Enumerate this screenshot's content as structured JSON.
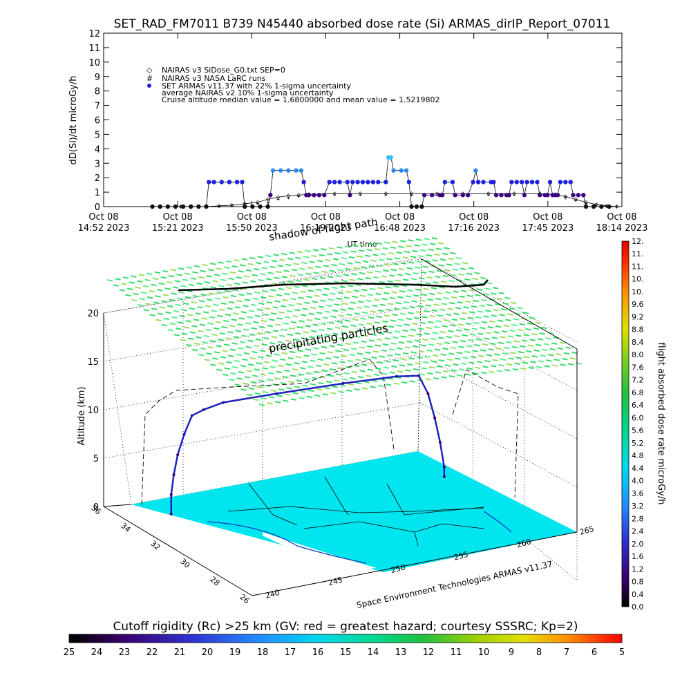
{
  "chart_data": [
    {
      "type": "line",
      "title": "SET_RAD_FM7011   B739 N45440 absorbed dose rate (Si) ARMAS_dirIP_Report_07011",
      "ylabel": "dD(Si)/dt microGy/h",
      "ylim": [
        0,
        12
      ],
      "yticks": [
        "0",
        "1",
        "2",
        "3",
        "4",
        "5",
        "6",
        "7",
        "8",
        "9",
        "10",
        "11",
        "12"
      ],
      "xlabel": "UT time",
      "xticks": [
        {
          "d": "Oct 08",
          "t": "14:52 2023"
        },
        {
          "d": "Oct 08",
          "t": "15:21 2023"
        },
        {
          "d": "Oct 08",
          "t": "15:50 2023"
        },
        {
          "d": "Oct 08",
          "t": "16:19 2023"
        },
        {
          "d": "Oct 08",
          "t": "16:48 2023"
        },
        {
          "d": "Oct 08",
          "t": "17:16 2023"
        },
        {
          "d": "Oct 08",
          "t": "17:45 2023"
        },
        {
          "d": "Oct 08",
          "t": "18:14 2023"
        }
      ],
      "xlim_minutes": [
        0,
        202
      ],
      "legend": [
        "NAIRAS v3 SiDose_G0.txt SEP=0",
        "NAIRAS v3 NASA LaRC runs",
        "SET ARMAS v11.37 with 22% 1-sigma uncertainty",
        "average NAIRAS v2 10% 1-sigma uncertainty",
        "Cruise altitude median value = 1.6800000 and mean value = 1.5219802"
      ],
      "series": [
        {
          "name": "SET ARMAS v11.37 with 22% 1-sigma uncertainty",
          "points": [
            [
              19,
              0
            ],
            [
              22,
              0
            ],
            [
              25,
              0
            ],
            [
              28,
              0
            ],
            [
              31,
              0
            ],
            [
              34,
              0
            ],
            [
              37,
              0
            ],
            [
              40,
              0
            ],
            [
              41,
              1.7
            ],
            [
              43,
              1.7
            ],
            [
              46,
              1.7
            ],
            [
              49,
              1.7
            ],
            [
              52,
              1.7
            ],
            [
              54,
              1.7
            ],
            [
              55,
              0
            ],
            [
              58,
              0
            ],
            [
              61,
              0
            ],
            [
              64,
              0
            ],
            [
              65,
              0.8
            ],
            [
              66,
              2.5
            ],
            [
              69,
              2.5
            ],
            [
              72,
              2.5
            ],
            [
              75,
              2.5
            ],
            [
              77,
              2.5
            ],
            [
              78,
              1.7
            ],
            [
              79,
              0.8
            ],
            [
              80,
              0.8
            ],
            [
              82,
              0.8
            ],
            [
              84,
              0.8
            ],
            [
              86,
              0.8
            ],
            [
              88,
              1.7
            ],
            [
              90,
              1.7
            ],
            [
              92,
              1.7
            ],
            [
              95,
              1.7
            ],
            [
              96,
              0.8
            ],
            [
              97,
              1.7
            ],
            [
              99,
              1.7
            ],
            [
              101,
              1.7
            ],
            [
              103,
              1.7
            ],
            [
              105,
              1.7
            ],
            [
              107,
              1.7
            ],
            [
              110,
              1.7
            ],
            [
              111,
              3.4
            ],
            [
              112,
              3.4
            ],
            [
              113,
              2.5
            ],
            [
              116,
              2.5
            ],
            [
              118,
              2.5
            ],
            [
              119,
              1.7
            ],
            [
              120,
              0
            ],
            [
              122,
              0
            ],
            [
              124,
              0
            ],
            [
              125,
              0.8
            ],
            [
              128,
              0.8
            ],
            [
              131,
              0.8
            ],
            [
              132,
              0.8
            ],
            [
              133,
              1.7
            ],
            [
              136,
              1.7
            ],
            [
              137,
              0.8
            ],
            [
              140,
              0.8
            ],
            [
              142,
              0.8
            ],
            [
              144,
              1.7
            ],
            [
              145,
              2.5
            ],
            [
              146,
              1.7
            ],
            [
              148,
              1.7
            ],
            [
              151,
              1.7
            ],
            [
              152,
              1.7
            ],
            [
              153,
              0.8
            ],
            [
              155,
              0.8
            ],
            [
              157,
              0.8
            ],
            [
              158,
              0.8
            ],
            [
              159,
              1.7
            ],
            [
              161,
              1.7
            ],
            [
              163,
              1.7
            ],
            [
              164,
              0.8
            ],
            [
              165,
              1.7
            ],
            [
              167,
              1.7
            ],
            [
              169,
              1.7
            ],
            [
              170,
              0.8
            ],
            [
              172,
              0.8
            ],
            [
              173,
              0.8
            ],
            [
              174,
              1.7
            ],
            [
              175,
              0.8
            ],
            [
              176,
              0.8
            ],
            [
              177,
              0.8
            ],
            [
              178,
              1.7
            ],
            [
              180,
              1.7
            ],
            [
              182,
              1.7
            ],
            [
              183,
              0.8
            ],
            [
              185,
              0.8
            ],
            [
              187,
              0.8
            ],
            [
              188,
              0
            ],
            [
              191,
              0
            ],
            [
              194,
              0
            ],
            [
              197,
              0
            ]
          ],
          "color": "#2020e0"
        },
        {
          "name": "NAIRAS v3 SiDose_G0.txt SEP=0",
          "points": [
            [
              19,
              0
            ],
            [
              30,
              0
            ],
            [
              40,
              0
            ],
            [
              45,
              0.05
            ],
            [
              50,
              0.1
            ],
            [
              55,
              0.2
            ],
            [
              60,
              0.3
            ],
            [
              64,
              0.5
            ],
            [
              68,
              0.65
            ],
            [
              72,
              0.75
            ],
            [
              76,
              0.8
            ],
            [
              80,
              0.85
            ],
            [
              90,
              0.9
            ],
            [
              100,
              0.9
            ],
            [
              110,
              0.9
            ],
            [
              120,
              0.9
            ],
            [
              130,
              0.9
            ],
            [
              140,
              0.9
            ],
            [
              150,
              0.9
            ],
            [
              160,
              0.9
            ],
            [
              170,
              0.9
            ],
            [
              176,
              0.85
            ],
            [
              180,
              0.7
            ],
            [
              184,
              0.5
            ],
            [
              188,
              0.3
            ],
            [
              192,
              0.15
            ],
            [
              196,
              0.05
            ],
            [
              200,
              0
            ]
          ],
          "color": "#000000"
        },
        {
          "name": "NAIRAS v3 NASA LaRC runs",
          "points": [
            [
              19,
              0
            ],
            [
              30,
              0
            ],
            [
              40,
              0
            ],
            [
              45,
              0
            ],
            [
              50,
              0.05
            ],
            [
              55,
              0.1
            ],
            [
              60,
              0.2
            ],
            [
              64,
              0.3
            ],
            [
              68,
              0.5
            ],
            [
              72,
              0.6
            ],
            [
              76,
              0.7
            ],
            [
              80,
              0.75
            ],
            [
              90,
              0.8
            ],
            [
              100,
              0.8
            ],
            [
              110,
              0.8
            ],
            [
              120,
              0.8
            ],
            [
              130,
              0.8
            ],
            [
              140,
              0.8
            ],
            [
              150,
              0.8
            ],
            [
              160,
              0.8
            ],
            [
              170,
              0.8
            ],
            [
              176,
              0.75
            ],
            [
              180,
              0.6
            ],
            [
              184,
              0.4
            ],
            [
              188,
              0.2
            ],
            [
              192,
              0.1
            ],
            [
              196,
              0.02
            ],
            [
              200,
              0
            ]
          ],
          "color": "#000000"
        }
      ]
    },
    {
      "type": "scatter",
      "title": "",
      "zlabel": "Altitude (km)",
      "zticks": [
        "0",
        "5",
        "10",
        "15",
        "20"
      ],
      "lat_ticks": [
        "36",
        "34",
        "32",
        "30",
        "28",
        "26"
      ],
      "lon_ticks": [
        "240",
        "245",
        "250",
        "255",
        "260",
        "265"
      ],
      "lon_tick_labels_shown": [
        "240",
        "245",
        "250",
        "255",
        "260",
        "265"
      ],
      "annotations": [
        "shadow of flight path",
        "precipitating particles",
        "Space Environment Technologies ARMAS v11.37"
      ],
      "flight_track": [
        [
          242,
          33.9,
          0
        ],
        [
          242,
          33.9,
          2
        ],
        [
          242.2,
          33.9,
          4
        ],
        [
          242.5,
          33.9,
          6
        ],
        [
          243,
          33.9,
          8
        ],
        [
          243.6,
          33.9,
          9.8
        ],
        [
          244.5,
          33.9,
          10.2
        ],
        [
          246,
          33.9,
          10.6
        ],
        [
          250,
          33.8,
          10.7
        ],
        [
          255,
          33.7,
          10.7
        ],
        [
          259,
          33.6,
          10.6
        ],
        [
          260.6,
          33.5,
          10.4
        ],
        [
          261.2,
          33.4,
          8.5
        ],
        [
          261.6,
          33.3,
          6
        ],
        [
          261.9,
          33.2,
          3.5
        ],
        [
          262.1,
          33.1,
          1
        ],
        [
          262.1,
          33.1,
          0
        ]
      ],
      "colorbar_right": {
        "label": "flight absorbed dose rate microGy/h",
        "ticks": [
          "0.0",
          "0.4",
          "0.8",
          "1.2",
          "1.6",
          "2.0",
          "2.4",
          "2.8",
          "3.2",
          "3.6",
          "4.0",
          "4.4",
          "4.8",
          "5.2",
          "5.6",
          "6.0",
          "6.4",
          "6.8",
          "7.2",
          "7.6",
          "8.0",
          "8.4",
          "8.8",
          "9.2",
          "9.6",
          "10.",
          "10.",
          "11.",
          "11.",
          "12."
        ]
      },
      "colorbar_bottom": {
        "label": "Cutoff rigidity (Rc) >25 km (GV: red = greatest hazard; courtesy SSSRC; Kp=2)",
        "ticks": [
          "25",
          "24",
          "23",
          "22",
          "21",
          "20",
          "19",
          "18",
          "17",
          "16",
          "15",
          "14",
          "13",
          "12",
          "11",
          "10",
          "9",
          "8",
          "7",
          "6",
          "5"
        ]
      },
      "colors": {
        "surface": "#00e5ee",
        "particles": "#44dd44",
        "track_high": "#2020c0"
      }
    }
  ]
}
